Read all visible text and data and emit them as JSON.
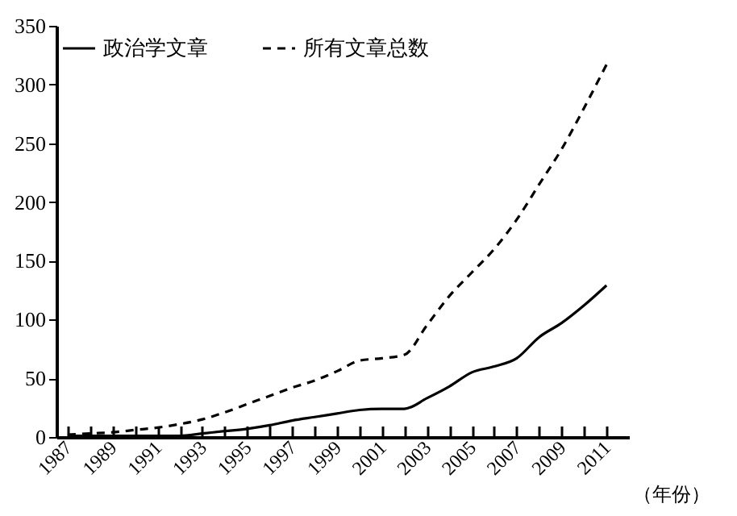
{
  "chart_data": {
    "type": "line",
    "xlabel": "（年份）",
    "x": [
      1987,
      1988,
      1989,
      1990,
      1991,
      1992,
      1993,
      1994,
      1995,
      1996,
      1997,
      1998,
      1999,
      2000,
      2001,
      2002,
      2003,
      2004,
      2005,
      2006,
      2007,
      2008,
      2009,
      2010,
      2011
    ],
    "series": [
      {
        "name": "政治学文章",
        "color": "#000000",
        "line_style": "solid",
        "values": [
          1,
          1,
          1,
          1,
          1,
          1,
          3,
          5,
          7,
          10,
          14,
          17,
          20,
          23,
          24,
          24,
          33,
          43,
          55,
          60,
          67,
          85,
          97,
          112,
          129
        ]
      },
      {
        "name": "所有文章总数",
        "color": "#000000",
        "line_style": "dashed",
        "values": [
          2,
          3,
          4,
          6,
          8,
          11,
          15,
          21,
          28,
          35,
          42,
          48,
          56,
          65,
          67,
          70,
          95,
          120,
          140,
          160,
          185,
          215,
          245,
          280,
          317
        ]
      }
    ],
    "xlim": [
      1986.5,
      2012
    ],
    "xticks": [
      1987,
      {
        "value": 1988,
        "label": null
      },
      1989,
      {
        "value": 1990,
        "label": null
      },
      1991,
      {
        "value": 1992,
        "label": null
      },
      1993,
      {
        "value": 1994,
        "label": null
      },
      1995,
      {
        "value": 1996,
        "label": null
      },
      1997,
      {
        "value": 1998,
        "label": null
      },
      1999,
      {
        "value": 2000,
        "label": null
      },
      2001,
      {
        "value": 2002,
        "label": null
      },
      2003,
      {
        "value": 2004,
        "label": null
      },
      2005,
      {
        "value": 2006,
        "label": null
      },
      2007,
      {
        "value": 2008,
        "label": null
      },
      2009,
      {
        "value": 2010,
        "label": null
      },
      2011
    ],
    "ylim": [
      0,
      350
    ],
    "yticks": [
      0,
      50,
      100,
      150,
      200,
      250,
      300,
      350
    ],
    "grid": false,
    "legend": "top left",
    "marker": "none"
  }
}
